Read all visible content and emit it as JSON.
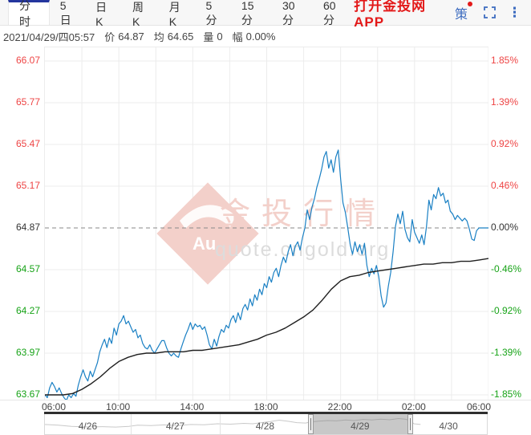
{
  "header": {
    "tabs": [
      "分时",
      "5日",
      "日K",
      "周K",
      "月K",
      "5分",
      "15分",
      "30分",
      "60分"
    ],
    "active_tab": "分时",
    "app_link": "打开金投网APP",
    "strategy_label": "策"
  },
  "info_bar": {
    "datetime": "2021/04/29/四05:57",
    "price_label": "价",
    "price_value": "64.87",
    "avg_label": "均",
    "avg_value": "64.65",
    "volume_label": "量",
    "volume_value": "0",
    "change_label": "幅",
    "change_value": "0.00%"
  },
  "watermark": {
    "logo_text": "Au",
    "title": "金投行情",
    "url": "quote.cngold.org"
  },
  "colors": {
    "accent_blue": "#3d6cc0",
    "brand_navy": "#24369e",
    "link_red": "#e31919",
    "up_red": "#ee4444",
    "down_green": "#17a317",
    "neutral_text": "#333333",
    "price_line": "#1a80c4",
    "avg_line": "#1f1f1f",
    "grid": "#ececec",
    "baseline_dash": "#8a8a8a",
    "watermark_pink": "#f3d0ca",
    "watermark_gray": "#dcdcdc",
    "nav_spark": "#c9c9c9"
  },
  "chart_data": {
    "type": "line",
    "title": "",
    "xlabel": "",
    "ylabel": "",
    "x_range_hours": [
      6,
      30
    ],
    "x_gridline_hours": [
      8,
      10,
      12,
      14,
      16,
      18,
      20,
      22,
      24,
      26,
      28,
      30
    ],
    "x_labels": [
      {
        "t": 6,
        "text": "06:00"
      },
      {
        "t": 10,
        "text": "10:00"
      },
      {
        "t": 14,
        "text": "14:00"
      },
      {
        "t": 18,
        "text": "18:00"
      },
      {
        "t": 22,
        "text": "22:00"
      },
      {
        "t": 26,
        "text": "02:00"
      },
      {
        "t": 30,
        "text": "06:00"
      }
    ],
    "y_ticks": [
      {
        "value": 66.07,
        "label": "66.07",
        "pct": "1.85%",
        "tone": "up"
      },
      {
        "value": 65.77,
        "label": "65.77",
        "pct": "1.39%",
        "tone": "up"
      },
      {
        "value": 65.47,
        "label": "65.47",
        "pct": "0.92%",
        "tone": "up"
      },
      {
        "value": 65.17,
        "label": "65.17",
        "pct": "0.46%",
        "tone": "up"
      },
      {
        "value": 64.87,
        "label": "64.87",
        "pct": "0.00%",
        "tone": "flat"
      },
      {
        "value": 64.57,
        "label": "64.57",
        "pct": "-0.46%",
        "tone": "down"
      },
      {
        "value": 64.27,
        "label": "64.27",
        "pct": "-0.92%",
        "tone": "down"
      },
      {
        "value": 63.97,
        "label": "63.97",
        "pct": "-1.39%",
        "tone": "down"
      },
      {
        "value": 63.67,
        "label": "63.67",
        "pct": "-1.85%",
        "tone": "down"
      }
    ],
    "baseline": {
      "price": 64.87,
      "pct": "0.00%"
    },
    "legend": [],
    "series": [
      {
        "name": "price",
        "color": "#1a80c4",
        "start_hour": 6,
        "end_hour": 30,
        "values": [
          63.67,
          63.65,
          63.72,
          63.76,
          63.73,
          63.69,
          63.72,
          63.68,
          63.65,
          63.63,
          63.67,
          63.65,
          63.68,
          63.66,
          63.74,
          63.8,
          63.85,
          63.8,
          63.77,
          63.84,
          63.8,
          63.85,
          63.9,
          63.98,
          64.03,
          64.07,
          64.01,
          64.08,
          64.04,
          64.15,
          64.1,
          64.18,
          64.2,
          64.24,
          64.18,
          64.2,
          64.16,
          64.12,
          64.14,
          64.08,
          64.1,
          64.04,
          64.01,
          64.0,
          64.03,
          63.99,
          63.97,
          64.0,
          64.03,
          64.06,
          64.06,
          64.01,
          63.97,
          63.95,
          63.97,
          63.95,
          63.94,
          64.0,
          64.05,
          64.1,
          64.14,
          64.19,
          64.14,
          64.18,
          64.16,
          64.17,
          64.14,
          64.16,
          64.1,
          64.03,
          64.0,
          64.07,
          64.02,
          64.09,
          64.14,
          64.12,
          64.17,
          64.15,
          64.21,
          64.24,
          64.19,
          64.26,
          64.21,
          64.29,
          64.32,
          64.28,
          64.36,
          64.31,
          64.39,
          64.35,
          64.43,
          64.39,
          64.47,
          64.44,
          64.52,
          64.48,
          64.55,
          64.58,
          64.52,
          64.6,
          64.66,
          64.62,
          64.7,
          64.75,
          64.67,
          64.74,
          64.77,
          64.71,
          64.8,
          64.87,
          65.0,
          64.93,
          65.02,
          65.08,
          65.16,
          65.22,
          65.29,
          65.38,
          65.42,
          65.3,
          65.36,
          65.27,
          65.38,
          65.43,
          65.22,
          65.05,
          64.98,
          64.87,
          64.75,
          64.68,
          64.77,
          64.7,
          64.75,
          64.68,
          64.76,
          64.6,
          64.52,
          64.58,
          64.54,
          64.6,
          64.52,
          64.38,
          64.3,
          64.33,
          64.45,
          64.55,
          64.7,
          64.88,
          64.97,
          64.9,
          64.99,
          64.86,
          64.8,
          64.77,
          64.93,
          64.84,
          64.8,
          64.76,
          64.82,
          64.75,
          64.88,
          65.07,
          65.0,
          65.11,
          65.08,
          65.16,
          65.1,
          65.12,
          65.05,
          65.07,
          64.99,
          64.97,
          64.93,
          64.96,
          64.94,
          64.92,
          64.94,
          64.92,
          64.86,
          64.79,
          64.78,
          64.85,
          64.87,
          64.87,
          64.87,
          64.87,
          64.87
        ]
      },
      {
        "name": "average",
        "color": "#1f1f1f",
        "points": [
          [
            6,
            63.67
          ],
          [
            6.5,
            63.67
          ],
          [
            7,
            63.67
          ],
          [
            7.5,
            63.68
          ],
          [
            8,
            63.71
          ],
          [
            8.5,
            63.75
          ],
          [
            9,
            63.8
          ],
          [
            9.5,
            63.86
          ],
          [
            10,
            63.91
          ],
          [
            10.5,
            63.94
          ],
          [
            11,
            63.96
          ],
          [
            11.5,
            63.97
          ],
          [
            12,
            63.97
          ],
          [
            12.5,
            63.98
          ],
          [
            13,
            63.98
          ],
          [
            13.5,
            63.98
          ],
          [
            14,
            63.99
          ],
          [
            14.5,
            63.99
          ],
          [
            15,
            64.0
          ],
          [
            15.5,
            64.01
          ],
          [
            16,
            64.02
          ],
          [
            16.5,
            64.03
          ],
          [
            17,
            64.05
          ],
          [
            17.5,
            64.07
          ],
          [
            18,
            64.1
          ],
          [
            18.5,
            64.12
          ],
          [
            19,
            64.15
          ],
          [
            19.5,
            64.19
          ],
          [
            20,
            64.23
          ],
          [
            20.5,
            64.28
          ],
          [
            21,
            64.35
          ],
          [
            21.5,
            64.43
          ],
          [
            22,
            64.49
          ],
          [
            22.5,
            64.52
          ],
          [
            23,
            64.53
          ],
          [
            23.5,
            64.55
          ],
          [
            24,
            64.56
          ],
          [
            24.5,
            64.57
          ],
          [
            25,
            64.58
          ],
          [
            25.5,
            64.59
          ],
          [
            26,
            64.6
          ],
          [
            26.5,
            64.61
          ],
          [
            27,
            64.61
          ],
          [
            27.5,
            64.62
          ],
          [
            28,
            64.62
          ],
          [
            28.5,
            64.63
          ],
          [
            29,
            64.63
          ],
          [
            29.5,
            64.64
          ],
          [
            30,
            64.65
          ]
        ]
      }
    ]
  },
  "navigator": {
    "days": [
      "4/26",
      "4/27",
      "4/28",
      "4/29",
      "4/30"
    ],
    "selected_day": "4/29",
    "boundaries": [
      0,
      0.194,
      0.396,
      0.6,
      0.826,
      1
    ],
    "selected_range": [
      0.6,
      0.826
    ],
    "spark": [
      [
        0.0,
        0.55
      ],
      [
        0.03,
        0.6
      ],
      [
        0.06,
        0.68
      ],
      [
        0.1,
        0.72
      ],
      [
        0.13,
        0.7
      ],
      [
        0.16,
        0.73
      ],
      [
        0.19,
        0.68
      ],
      [
        0.21,
        0.6
      ],
      [
        0.24,
        0.63
      ],
      [
        0.27,
        0.58
      ],
      [
        0.3,
        0.62
      ],
      [
        0.33,
        0.55
      ],
      [
        0.36,
        0.57
      ],
      [
        0.39,
        0.5
      ],
      [
        0.42,
        0.53
      ],
      [
        0.45,
        0.47
      ],
      [
        0.47,
        0.5
      ],
      [
        0.49,
        0.42
      ],
      [
        0.51,
        0.35
      ],
      [
        0.53,
        0.25
      ],
      [
        0.55,
        0.33
      ],
      [
        0.57,
        0.42
      ],
      [
        0.59,
        0.45
      ],
      [
        0.6,
        0.38
      ],
      [
        0.62,
        0.32
      ],
      [
        0.64,
        0.28
      ],
      [
        0.66,
        0.3
      ],
      [
        0.68,
        0.24
      ],
      [
        0.7,
        0.28
      ],
      [
        0.72,
        0.2
      ],
      [
        0.74,
        0.24
      ],
      [
        0.76,
        0.18
      ],
      [
        0.78,
        0.22
      ],
      [
        0.8,
        0.14
      ],
      [
        0.815,
        0.18
      ],
      [
        0.826,
        0.28
      ],
      [
        0.835,
        0.5
      ],
      [
        0.85,
        0.55
      ]
    ]
  }
}
